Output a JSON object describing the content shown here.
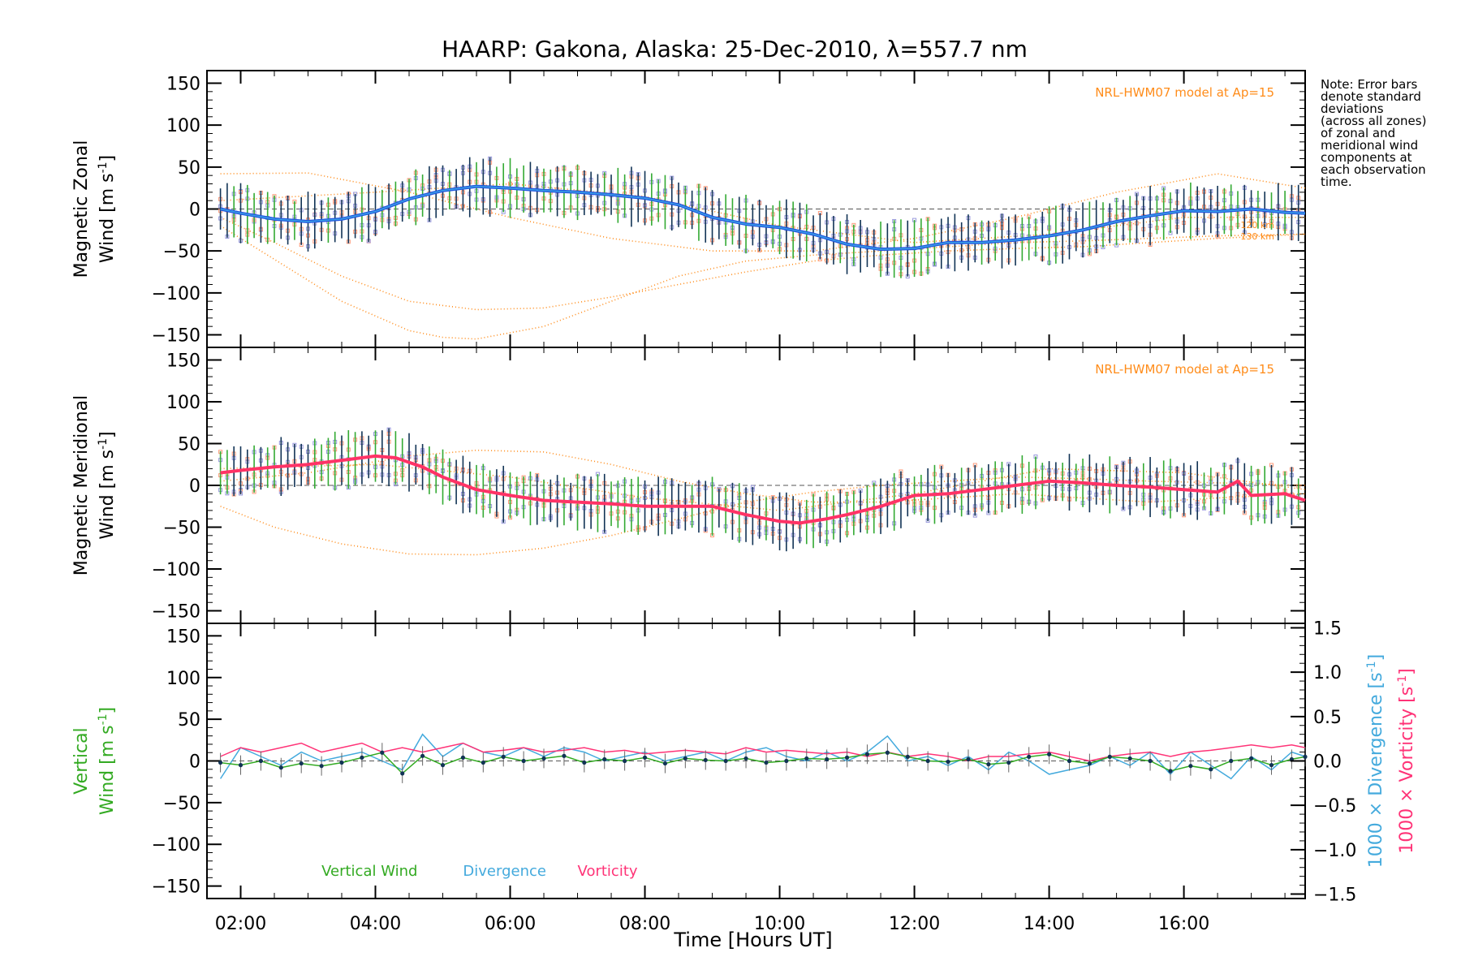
{
  "title": "HAARP: Gakona,  Alaska: 25-Dec-2010, λ=557.7 nm",
  "note_lines": [
    "Note: Error bars",
    "denote standard",
    "deviations",
    "(across all zones)",
    "of zonal and",
    "meridional wind",
    "components at",
    "each observation",
    "time."
  ],
  "colors": {
    "zonal": "#2255dd",
    "zonal_light": "#3aa0e6",
    "meridional": "#ff3366",
    "model": "#ff8c1a",
    "vertical": "#33aa22",
    "divergence": "#44aadd",
    "vorticity": "#ff3377",
    "zone_lavender": "#9999dd",
    "zone_salmon": "#ff9a7a",
    "bar_dark": "#113355",
    "bar_green": "#33aa33"
  },
  "chart_data": [
    {
      "type": "line",
      "id": "zonal",
      "ylabel_line1": "Magnetic Zonal",
      "ylabel_line2": "Wind [m s",
      "ylabel_sup": "-1",
      "ylabel_end": "]",
      "ylim": [
        -165,
        165
      ],
      "yticks": [
        -150,
        -100,
        -50,
        0,
        50,
        100,
        150
      ],
      "model_label": "NRL-HWM07 model at Ap=15",
      "model_alt_labels": [
        "120 km",
        "130 km"
      ],
      "series": [
        {
          "x": [
            1.7,
            2.0,
            2.5,
            3.0,
            3.5,
            4.0,
            4.5,
            5.0,
            5.5,
            6.0,
            6.5,
            7.0,
            7.5,
            8.0,
            8.5,
            9.0,
            9.5,
            10.0,
            10.5,
            11.0,
            11.5,
            12.0,
            12.5,
            13.0,
            13.5,
            14.0,
            14.5,
            15.0,
            15.5,
            16.0,
            16.5,
            17.0,
            17.5,
            17.8
          ],
          "y": [
            0,
            -5,
            -12,
            -15,
            -12,
            -3,
            12,
            22,
            27,
            25,
            22,
            20,
            17,
            13,
            5,
            -10,
            -18,
            -22,
            -30,
            -42,
            -48,
            -47,
            -40,
            -40,
            -37,
            -32,
            -25,
            -15,
            -8,
            -2,
            -3,
            0,
            -4,
            -5
          ]
        }
      ],
      "models": [
        {
          "x": [
            1.7,
            3.0,
            4.5,
            6.0,
            7.5,
            9.0,
            10.5,
            12.0,
            13.5,
            15.0,
            16.5,
            17.8
          ],
          "y": [
            42,
            43,
            20,
            -10,
            -35,
            -50,
            -50,
            -35,
            -10,
            20,
            42,
            25
          ]
        },
        {
          "x": [
            1.7,
            2.5,
            3.5,
            4.5,
            5.5,
            6.5,
            7.5,
            8.5,
            9.5,
            10.5,
            11.5,
            12.5,
            13.5,
            14.5,
            15.5,
            16.5,
            17.8
          ],
          "y": [
            -10,
            -40,
            -80,
            -110,
            -120,
            -118,
            -105,
            -90,
            -75,
            -62,
            -55,
            -50,
            -47,
            -45,
            -40,
            -35,
            -30
          ]
        },
        {
          "x": [
            1.7,
            2.5,
            3.5,
            4.5,
            5.0,
            5.5,
            6.5,
            7.5,
            8.5,
            9.5,
            10.5,
            11.5,
            12.5,
            13.5,
            14.5,
            15.5,
            16.5,
            17.8
          ],
          "y": [
            -20,
            -60,
            -110,
            -145,
            -153,
            -155,
            -140,
            -110,
            -80,
            -62,
            -55,
            -50,
            -45,
            -40,
            -38,
            -35,
            -32,
            -30
          ]
        },
        {
          "x": [
            1.7,
            4.0,
            6.0,
            8.0,
            10.0,
            12.0,
            14.0,
            16.0,
            17.8
          ],
          "y": [
            10,
            20,
            30,
            15,
            -20,
            -40,
            -30,
            -10,
            -10
          ]
        }
      ]
    },
    {
      "type": "line",
      "id": "meridional",
      "ylabel_line1": "Magnetic Meridional",
      "ylabel_line2": "Wind [m s",
      "ylabel_sup": "-1",
      "ylabel_end": "]",
      "ylim": [
        -165,
        165
      ],
      "yticks": [
        -150,
        -100,
        -50,
        0,
        50,
        100,
        150
      ],
      "model_label": "NRL-HWM07 model at Ap=15",
      "series": [
        {
          "x": [
            1.7,
            2.0,
            2.5,
            3.0,
            3.5,
            4.0,
            4.3,
            4.7,
            5.0,
            5.5,
            6.0,
            6.5,
            7.0,
            7.5,
            8.0,
            8.5,
            9.0,
            9.5,
            10.0,
            10.3,
            10.7,
            11.0,
            11.5,
            12.0,
            12.5,
            13.0,
            13.5,
            14.0,
            14.5,
            15.0,
            15.5,
            16.0,
            16.5,
            16.8,
            17.0,
            17.5,
            17.8
          ],
          "y": [
            15,
            18,
            22,
            25,
            30,
            35,
            33,
            22,
            10,
            -5,
            -12,
            -18,
            -20,
            -22,
            -25,
            -25,
            -25,
            -35,
            -43,
            -45,
            -40,
            -35,
            -25,
            -12,
            -10,
            -5,
            0,
            5,
            3,
            0,
            -2,
            -5,
            -8,
            5,
            -12,
            -10,
            -18
          ]
        }
      ],
      "models": [
        {
          "x": [
            1.7,
            2.5,
            3.5,
            4.5,
            5.5,
            6.5,
            7.5,
            8.5,
            9.5,
            10.5,
            11.5,
            12.5,
            13.5,
            14.5,
            15.5,
            16.5,
            17.8
          ],
          "y": [
            -25,
            -50,
            -70,
            -82,
            -83,
            -75,
            -60,
            -40,
            -20,
            -8,
            0,
            5,
            10,
            8,
            5,
            3,
            0
          ]
        },
        {
          "x": [
            1.7,
            3.0,
            4.5,
            5.5,
            6.5,
            7.5,
            8.5,
            9.5,
            10.5,
            11.5,
            12.5,
            13.5,
            14.5,
            15.5,
            16.5,
            17.8
          ],
          "y": [
            5,
            15,
            35,
            42,
            40,
            25,
            5,
            -10,
            -20,
            -20,
            -15,
            -10,
            -15,
            -20,
            -15,
            -10
          ]
        },
        {
          "x": [
            1.7,
            4.0,
            6.0,
            8.0,
            10.0,
            12.0,
            14.0,
            16.0,
            17.8
          ],
          "y": [
            20,
            25,
            10,
            -15,
            -30,
            -10,
            20,
            15,
            -5
          ]
        }
      ]
    },
    {
      "type": "line",
      "id": "vertical",
      "ylabel_line1": "Vertical",
      "ylabel_line2": "Wind [m s",
      "ylabel_sup": "-1",
      "ylabel_end": "]",
      "ylim": [
        -165,
        165
      ],
      "yticks": [
        -150,
        -100,
        -50,
        0,
        50,
        100,
        150
      ],
      "y2lim": [
        -1.55,
        1.55
      ],
      "y2ticks": [
        -1.5,
        -1.0,
        -0.5,
        0.0,
        0.5,
        1.0,
        1.5
      ],
      "y2label_div": "1000 × Divergence [s",
      "y2label_vort": "1000 × Vorticity [s",
      "y2label_sup": "-1",
      "y2label_end": "]",
      "legend": [
        "Vertical Wind",
        "Divergence",
        "Vorticity"
      ],
      "series": [
        {
          "name": "Vertical Wind",
          "x": [
            1.7,
            2.0,
            2.3,
            2.6,
            2.9,
            3.2,
            3.5,
            3.8,
            4.1,
            4.4,
            4.7,
            5.0,
            5.3,
            5.6,
            5.9,
            6.2,
            6.5,
            6.8,
            7.1,
            7.4,
            7.7,
            8.0,
            8.3,
            8.6,
            8.9,
            9.2,
            9.5,
            9.8,
            10.1,
            10.4,
            10.7,
            11.0,
            11.3,
            11.6,
            11.9,
            12.2,
            12.5,
            12.8,
            13.1,
            13.4,
            13.7,
            14.0,
            14.3,
            14.6,
            14.9,
            15.2,
            15.5,
            15.8,
            16.1,
            16.4,
            16.7,
            17.0,
            17.3,
            17.6,
            17.8
          ],
          "y": [
            -2,
            -5,
            0,
            -8,
            -3,
            -6,
            -2,
            4,
            10,
            -15,
            6,
            -5,
            4,
            -2,
            5,
            0,
            3,
            6,
            -2,
            2,
            0,
            4,
            -3,
            3,
            1,
            0,
            3,
            -2,
            0,
            3,
            2,
            4,
            8,
            10,
            5,
            0,
            -1,
            2,
            -4,
            -2,
            5,
            8,
            0,
            -3,
            5,
            3,
            0,
            -12,
            -6,
            -10,
            0,
            3,
            -5,
            2,
            5
          ]
        },
        {
          "name": "Divergence",
          "axis": "right",
          "x": [
            1.7,
            2.0,
            2.3,
            2.6,
            2.9,
            3.2,
            3.5,
            3.8,
            4.1,
            4.4,
            4.7,
            5.0,
            5.3,
            5.6,
            5.9,
            6.2,
            6.5,
            6.8,
            7.1,
            7.4,
            7.7,
            8.0,
            8.3,
            8.6,
            8.9,
            9.2,
            9.5,
            9.8,
            10.1,
            10.4,
            10.7,
            11.0,
            11.3,
            11.6,
            11.9,
            12.2,
            12.5,
            12.8,
            13.1,
            13.4,
            13.7,
            14.0,
            14.3,
            14.6,
            14.9,
            15.2,
            15.5,
            15.8,
            16.1,
            16.4,
            16.7,
            17.0,
            17.3,
            17.6,
            17.8
          ],
          "y": [
            -0.2,
            0.15,
            0.05,
            -0.05,
            0.1,
            0.0,
            0.05,
            0.1,
            0.0,
            -0.1,
            0.3,
            0.05,
            0.2,
            0.1,
            0.05,
            0.15,
            0.05,
            0.15,
            0.1,
            0.0,
            0.05,
            0.1,
            0.0,
            0.05,
            0.1,
            0.0,
            0.1,
            0.15,
            0.05,
            0.0,
            0.1,
            0.0,
            0.1,
            0.28,
            0.0,
            0.05,
            -0.05,
            0.05,
            -0.1,
            0.1,
            0.0,
            -0.15,
            -0.1,
            -0.05,
            0.05,
            -0.05,
            0.1,
            -0.15,
            0.1,
            -0.05,
            -0.2,
            0.05,
            -0.1,
            0.1,
            0.05
          ]
        },
        {
          "name": "Vorticity",
          "axis": "right",
          "x": [
            1.7,
            2.0,
            2.3,
            2.6,
            2.9,
            3.2,
            3.5,
            3.8,
            4.1,
            4.4,
            4.7,
            5.0,
            5.3,
            5.6,
            5.9,
            6.2,
            6.5,
            6.8,
            7.1,
            7.4,
            7.7,
            8.0,
            8.3,
            8.6,
            8.9,
            9.2,
            9.5,
            9.8,
            10.1,
            10.4,
            10.7,
            11.0,
            11.3,
            11.6,
            11.9,
            12.2,
            12.5,
            12.8,
            13.1,
            13.4,
            13.7,
            14.0,
            14.3,
            14.6,
            14.9,
            15.2,
            15.5,
            15.8,
            16.1,
            16.4,
            16.7,
            17.0,
            17.3,
            17.6,
            17.8
          ],
          "y": [
            0.05,
            0.15,
            0.1,
            0.15,
            0.2,
            0.1,
            0.15,
            0.2,
            0.1,
            0.15,
            0.1,
            0.15,
            0.2,
            0.1,
            0.12,
            0.15,
            0.1,
            0.12,
            0.15,
            0.1,
            0.12,
            0.08,
            0.1,
            0.12,
            0.1,
            0.08,
            0.15,
            0.1,
            0.12,
            0.1,
            0.08,
            0.1,
            0.05,
            0.1,
            0.05,
            0.08,
            0.05,
            0.0,
            0.05,
            0.05,
            0.08,
            0.1,
            0.05,
            0.0,
            0.05,
            0.08,
            0.1,
            0.05,
            0.1,
            0.12,
            0.15,
            0.18,
            0.15,
            0.18,
            0.15
          ]
        }
      ]
    }
  ],
  "xaxis": {
    "xlabel": "Time [Hours UT]",
    "xlim": [
      1.5,
      17.8
    ],
    "ticks": [
      2,
      4,
      6,
      8,
      10,
      12,
      14,
      16
    ],
    "tick_labels": [
      "02:00",
      "04:00",
      "06:00",
      "08:00",
      "10:00",
      "12:00",
      "14:00",
      "16:00"
    ]
  }
}
